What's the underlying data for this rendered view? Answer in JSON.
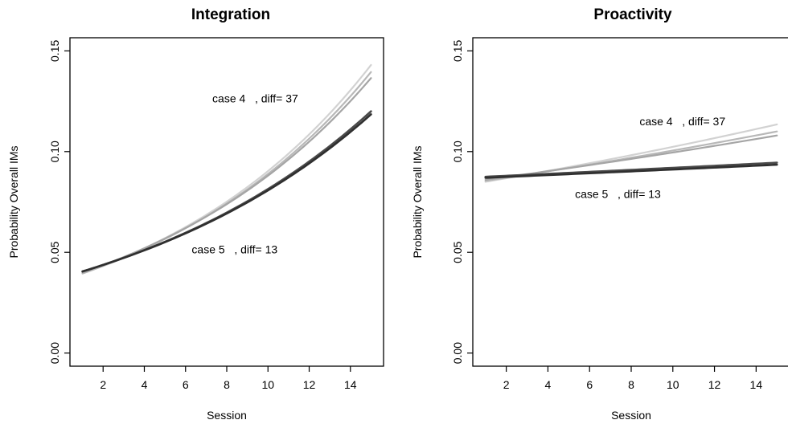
{
  "chart_data": [
    {
      "type": "line",
      "title": "Integration",
      "xlabel": "Session",
      "ylabel": "Probability Overall IMs",
      "xlim": [
        1,
        15
      ],
      "ylim": [
        0,
        0.15
      ],
      "xticks": [
        2,
        4,
        6,
        8,
        10,
        12,
        14
      ],
      "yticks": [
        0.0,
        0.05,
        0.1,
        0.15
      ],
      "xtick_labels": [
        "2",
        "4",
        "6",
        "8",
        "10",
        "12",
        "14"
      ],
      "ytick_labels": [
        "0.00",
        "0.05",
        "0.10",
        "0.15"
      ],
      "grid": false,
      "series": [
        {
          "group": "case 4",
          "color": "#d2d2d2",
          "width": 2.2,
          "x": [
            1,
            15
          ],
          "y": [
            0.0395,
            0.143
          ],
          "shape": "exponential"
        },
        {
          "group": "case 4",
          "color": "#b8b8b8",
          "width": 2.2,
          "x": [
            1,
            15
          ],
          "y": [
            0.0395,
            0.1395
          ],
          "shape": "exponential"
        },
        {
          "group": "case 4",
          "color": "#a5a5a5",
          "width": 2.2,
          "x": [
            1,
            15
          ],
          "y": [
            0.04,
            0.1365
          ],
          "shape": "exponential"
        },
        {
          "group": "case 5",
          "color": "#4a4a4a",
          "width": 2.6,
          "x": [
            1,
            15
          ],
          "y": [
            0.0405,
            0.12
          ],
          "shape": "exponential"
        },
        {
          "group": "case 5",
          "color": "#2f2f2f",
          "width": 2.6,
          "x": [
            1,
            15
          ],
          "y": [
            0.0405,
            0.1185
          ],
          "shape": "exponential"
        }
      ],
      "annotations": [
        {
          "text": "case 4   , diff= 37",
          "x": 7.3,
          "y": 0.1245
        },
        {
          "text": "case 5   , diff= 13",
          "x": 6.3,
          "y": 0.0495
        }
      ]
    },
    {
      "type": "line",
      "title": "Proactivity",
      "xlabel": "Session",
      "ylabel": "Probability Overall IMs",
      "xlim": [
        1,
        15
      ],
      "ylim": [
        0,
        0.15
      ],
      "xticks": [
        2,
        4,
        6,
        8,
        10,
        12,
        14
      ],
      "yticks": [
        0.0,
        0.05,
        0.1,
        0.15
      ],
      "xtick_labels": [
        "2",
        "4",
        "6",
        "8",
        "10",
        "12",
        "14"
      ],
      "ytick_labels": [
        "0.00",
        "0.05",
        "0.10",
        "0.15"
      ],
      "grid": false,
      "series": [
        {
          "group": "case 4",
          "color": "#d2d2d2",
          "width": 2.2,
          "x": [
            1,
            15
          ],
          "y": [
            0.085,
            0.1135
          ],
          "shape": "exponential"
        },
        {
          "group": "case 4",
          "color": "#b8b8b8",
          "width": 2.2,
          "x": [
            1,
            15
          ],
          "y": [
            0.0855,
            0.11
          ],
          "shape": "exponential"
        },
        {
          "group": "case 4",
          "color": "#a5a5a5",
          "width": 2.2,
          "x": [
            1,
            15
          ],
          "y": [
            0.086,
            0.108
          ],
          "shape": "exponential"
        },
        {
          "group": "case 5",
          "color": "#4a4a4a",
          "width": 2.6,
          "x": [
            1,
            15
          ],
          "y": [
            0.0875,
            0.0945
          ],
          "shape": "exponential"
        },
        {
          "group": "case 5",
          "color": "#2f2f2f",
          "width": 2.6,
          "x": [
            1,
            15
          ],
          "y": [
            0.087,
            0.0935
          ],
          "shape": "exponential"
        }
      ],
      "annotations": [
        {
          "text": "case 4   , diff= 37",
          "x": 8.4,
          "y": 0.113
        },
        {
          "text": "case 5   , diff= 13",
          "x": 5.3,
          "y": 0.077
        }
      ]
    }
  ]
}
